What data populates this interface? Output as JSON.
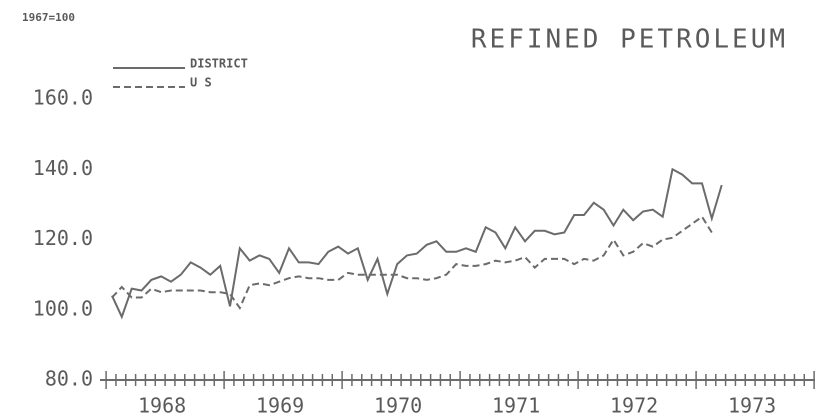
{
  "chart_data": {
    "type": "line",
    "title": "REFINED PETROLEUM",
    "subtitle": "1967=100",
    "categories": [
      "1968",
      null,
      null,
      null,
      null,
      null,
      null,
      null,
      null,
      null,
      null,
      null,
      "1969",
      null,
      null,
      null,
      null,
      null,
      null,
      null,
      null,
      null,
      null,
      null,
      "1970",
      null,
      null,
      null,
      null,
      null,
      null,
      null,
      null,
      null,
      null,
      null,
      "1971",
      null,
      null,
      null,
      null,
      null,
      null,
      null,
      null,
      null,
      null,
      null,
      "1972",
      null,
      null,
      null,
      null,
      null,
      null,
      null,
      null,
      null,
      null,
      null,
      "1973",
      null,
      null
    ],
    "series": [
      {
        "name": "DISTRICT",
        "color": "#6b6b6b",
        "dash": false,
        "values": [
          104,
          98,
          106,
          105.5,
          108.5,
          109.5,
          108,
          110,
          113.5,
          112,
          110,
          112.5,
          101,
          117.5,
          114,
          115.5,
          114.5,
          110.5,
          117.5,
          113.5,
          113.5,
          113,
          116.5,
          118,
          116,
          117.5,
          108.5,
          114.5,
          104.5,
          113,
          115.5,
          116,
          118.5,
          119.5,
          116.5,
          116.5,
          117.5,
          116.5,
          123.5,
          122,
          117.5,
          123.5,
          119.5,
          122.5,
          122.5,
          121.5,
          122,
          127,
          127,
          130.5,
          128.5,
          124,
          128.5,
          125.5,
          128,
          128.5,
          126.5,
          140,
          138.5,
          136,
          136,
          126,
          135.5
        ]
      },
      {
        "name": "U S",
        "color": "#6b6b6b",
        "dash": true,
        "values": [
          103.5,
          106.5,
          103.5,
          103.5,
          106,
          105,
          105.5,
          105.5,
          105.5,
          105.5,
          105,
          105,
          104.5,
          100.5,
          107,
          107.5,
          107,
          108,
          109,
          109.5,
          109,
          109,
          108.5,
          108.5,
          110.5,
          110,
          110,
          110,
          110,
          110,
          109,
          109,
          108.5,
          109,
          110,
          113,
          112.5,
          112.5,
          113,
          114,
          113.5,
          114,
          115,
          112,
          114.5,
          114.5,
          114.5,
          113,
          114.5,
          114,
          115.5,
          120,
          115.5,
          116.5,
          119,
          118,
          120,
          120.5,
          122.5,
          124.5,
          126.5,
          122,
          null
        ]
      }
    ],
    "ylim": [
      80,
      170
    ],
    "yticks": [
      {
        "value": 80,
        "label": "80.0"
      },
      {
        "value": 100,
        "label": "100.0"
      },
      {
        "value": 120,
        "label": "120.0"
      },
      {
        "value": 140,
        "label": "140.0"
      },
      {
        "value": 160,
        "label": "160.0"
      }
    ],
    "grid": false
  }
}
